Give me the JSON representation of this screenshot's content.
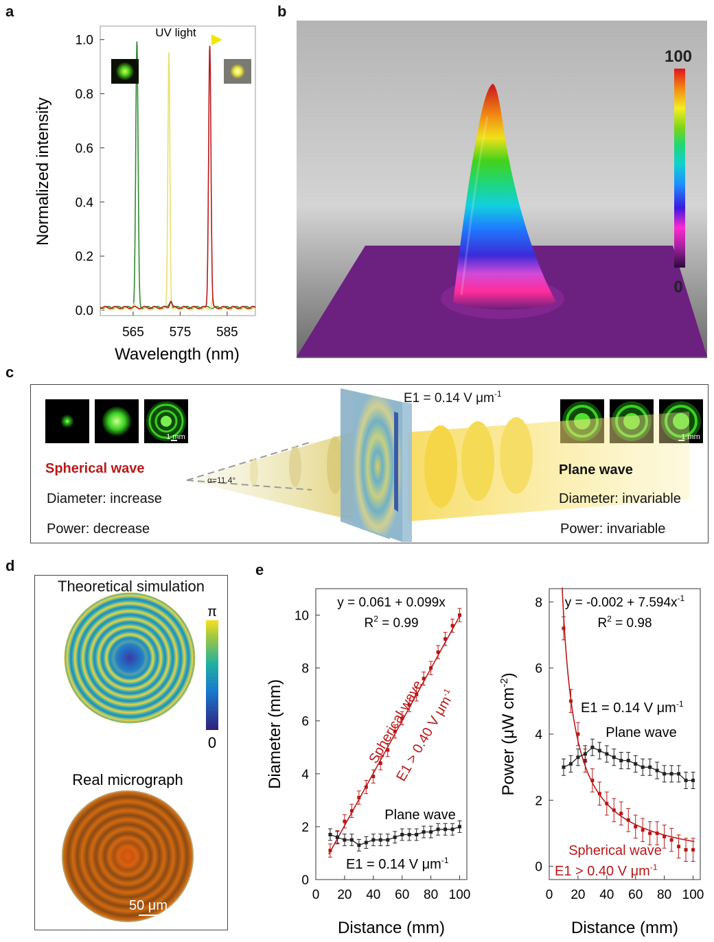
{
  "panels": {
    "a": {
      "label": "a",
      "uv_text": "UV light",
      "chart_data": {
        "type": "line",
        "xlabel": "Wavelength (nm)",
        "ylabel": "Normalized intensity",
        "xlim": [
          558,
          591
        ],
        "ylim": [
          -0.02,
          1.05
        ],
        "xticks": [
          565,
          575,
          585
        ],
        "yticks": [
          0.0,
          0.2,
          0.4,
          0.6,
          0.8,
          1.0
        ],
        "ytick_labels": [
          "0.0",
          "0.2",
          "0.4",
          "0.6",
          "0.8",
          "1.0"
        ],
        "series": [
          {
            "color": "#2e8b2e",
            "peaks": [
              {
                "center": 565.8,
                "height": 0.98,
                "width": 0.35
              },
              {
                "center": 573.0,
                "height": 0.02,
                "width": 0.4
              }
            ],
            "baseline": 0.01
          },
          {
            "color": "#e8e070",
            "peaks": [
              {
                "center": 572.6,
                "height": 0.95,
                "width": 0.3
              },
              {
                "center": 565.2,
                "height": 0.02,
                "width": 0.3
              },
              {
                "center": 581.9,
                "height": 0.04,
                "width": 0.3
              }
            ],
            "baseline": 0.005
          },
          {
            "color": "#b81818",
            "peaks": [
              {
                "center": 581.3,
                "height": 0.97,
                "width": 0.35
              },
              {
                "center": 573.0,
                "height": 0.025,
                "width": 0.35
              }
            ],
            "baseline": 0.01
          }
        ]
      }
    },
    "b": {
      "label": "b",
      "colorbar_max": "100",
      "colorbar_min": "0"
    },
    "c": {
      "label": "c",
      "field_text": "E1 = 0.14 V μm",
      "field_sup": "-1",
      "alpha_text": "α=11.4°",
      "scale_left": "1 mm",
      "scale_right": "1 mm",
      "spherical_title": "Spherical wave",
      "spherical_diameter": "Diameter: increase",
      "spherical_power": "Power: decrease",
      "plane_title": "Plane wave",
      "plane_diameter": "Diameter: invariable",
      "plane_power": "Power: invariable"
    },
    "d": {
      "label": "d",
      "sim_title": "Theoretical simulation",
      "cbar_top": "π",
      "cbar_bottom": "0",
      "micro_title": "Real micrograph",
      "scale_bar": "50 μm"
    },
    "e": {
      "label": "e",
      "left_chart": {
        "chart_data": {
          "type": "scatter",
          "xlabel": "Distance (mm)",
          "ylabel": "Diameter (mm)",
          "xlim": [
            0,
            105
          ],
          "ylim": [
            0,
            11
          ],
          "xticks": [
            0,
            20,
            40,
            60,
            80,
            100
          ],
          "yticks": [
            0,
            2,
            4,
            6,
            8,
            10
          ],
          "fit_equation": "y = 0.061 + 0.099x",
          "r2_text": "R",
          "r2_value": " = 0.99",
          "series": [
            {
              "name": "Spherical wave",
              "color": "#b81818",
              "x": [
                10,
                15,
                20,
                25,
                30,
                35,
                40,
                45,
                50,
                55,
                60,
                65,
                70,
                75,
                80,
                85,
                90,
                95,
                100
              ],
              "y": [
                1.1,
                1.6,
                2.2,
                2.6,
                3.1,
                3.5,
                3.9,
                4.4,
                4.9,
                5.6,
                6.1,
                6.6,
                7.0,
                7.6,
                8.0,
                8.6,
                9.1,
                9.6,
                10.0
              ],
              "err": 0.25
            },
            {
              "name": "Plane wave",
              "color": "#222222",
              "x": [
                10,
                15,
                20,
                25,
                30,
                35,
                40,
                45,
                50,
                55,
                60,
                65,
                70,
                75,
                80,
                85,
                90,
                95,
                100
              ],
              "y": [
                1.7,
                1.6,
                1.5,
                1.5,
                1.3,
                1.4,
                1.5,
                1.5,
                1.5,
                1.6,
                1.7,
                1.7,
                1.7,
                1.8,
                1.8,
                1.9,
                1.9,
                1.9,
                2.0
              ],
              "err": 0.22
            }
          ],
          "annotations": {
            "spherical": "Spherical wave",
            "spherical_field": "E1 > 0.40 V μm",
            "spherical_field_sup": "-1",
            "plane": "Plane wave",
            "plane_field": "E1 = 0.14 V μm",
            "plane_field_sup": "-1"
          }
        }
      },
      "right_chart": {
        "chart_data": {
          "type": "scatter",
          "xlabel": "Distance (mm)",
          "ylabel": "Power (μW cm",
          "ylabel_sup": "-2",
          "ylabel_end": ")",
          "xlim": [
            0,
            105
          ],
          "ylim": [
            -0.4,
            8.4
          ],
          "xticks": [
            0,
            20,
            40,
            60,
            80,
            100
          ],
          "yticks": [
            0,
            2,
            4,
            6,
            8
          ],
          "fit_equation": "y = -0.002 + 7.594x",
          "fit_sup": "-1",
          "r2_text": "R",
          "r2_value": " = 0.98",
          "series": [
            {
              "name": "Spherical wave",
              "color": "#b81818",
              "x": [
                10,
                15,
                20,
                25,
                30,
                35,
                40,
                45,
                50,
                55,
                60,
                65,
                70,
                75,
                80,
                85,
                90,
                95,
                100
              ],
              "y": [
                7.2,
                5.0,
                4.0,
                3.2,
                2.6,
                2.2,
                1.9,
                1.7,
                1.6,
                1.4,
                1.2,
                1.1,
                1.0,
                1.0,
                0.9,
                0.8,
                0.6,
                0.5,
                0.5
              ],
              "err": 0.35
            },
            {
              "name": "Plane wave",
              "color": "#222222",
              "x": [
                10,
                15,
                20,
                25,
                30,
                35,
                40,
                45,
                50,
                55,
                60,
                65,
                70,
                75,
                80,
                85,
                90,
                95,
                100
              ],
              "y": [
                3.0,
                3.1,
                3.3,
                3.4,
                3.6,
                3.5,
                3.4,
                3.3,
                3.2,
                3.2,
                3.1,
                3.0,
                3.0,
                2.9,
                2.8,
                2.8,
                2.8,
                2.6,
                2.6
              ],
              "err": 0.25
            }
          ],
          "annotations": {
            "plane_field": "E1 = 0.14 V μm",
            "plane_field_sup": "-1",
            "plane": "Plane wave",
            "spherical": "Spherical wave",
            "spherical_field": "E1 > 0.40 V μm",
            "spherical_field_sup": "-1"
          }
        }
      }
    }
  }
}
